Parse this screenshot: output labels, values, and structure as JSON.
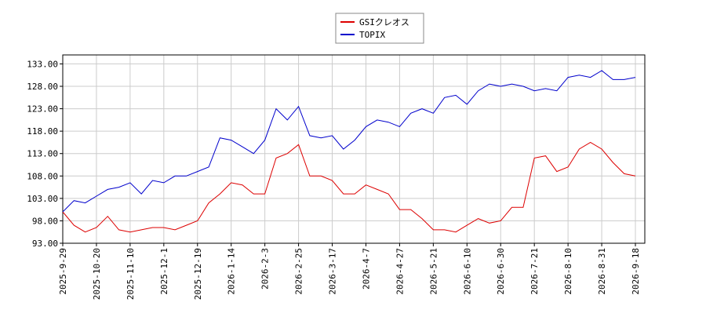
{
  "chart_data": {
    "type": "line",
    "x": [
      "2025-9-29",
      null,
      null,
      "2025-10-20",
      null,
      null,
      "2025-11-10",
      null,
      null,
      "2025-12-1",
      null,
      null,
      "2025-12-19",
      null,
      null,
      "2026-1-14",
      null,
      null,
      "2026-2-3",
      null,
      null,
      "2026-2-25",
      null,
      null,
      "2026-3-17",
      null,
      null,
      "2026-4-7",
      null,
      null,
      "2026-4-27",
      null,
      null,
      "2026-5-21",
      null,
      null,
      "2026-6-10",
      null,
      null,
      "2026-6-30",
      null,
      null,
      "2026-7-21",
      null,
      null,
      "2026-8-10",
      null,
      null,
      "2026-8-31",
      null,
      null,
      "2026-9-18"
    ],
    "series": [
      {
        "name": "GSIクレオス",
        "color": "#dd0000",
        "values": [
          100,
          97,
          95.5,
          96.5,
          99,
          96,
          95.5,
          96,
          96.5,
          96.5,
          96,
          97,
          98,
          102,
          104,
          106.5,
          106,
          104,
          104,
          112,
          113,
          115,
          108,
          108,
          107,
          104,
          104,
          106,
          105,
          104,
          100.5,
          100.5,
          98.5,
          96,
          96,
          95.5,
          97,
          98.5,
          97.5,
          98,
          101,
          101,
          112,
          112.5,
          109,
          110,
          114,
          115.5,
          114,
          111,
          108.5,
          108
        ]
      },
      {
        "name": "TOPIX",
        "color": "#0000cc",
        "values": [
          100,
          102.5,
          102,
          103.5,
          105,
          105.5,
          106.5,
          104,
          107,
          106.5,
          108,
          108,
          109,
          110,
          116.5,
          116,
          114.5,
          113,
          116,
          123,
          120.5,
          123.5,
          117,
          116.5,
          117,
          114,
          116,
          119,
          120.5,
          120,
          119,
          122,
          123,
          122,
          125.5,
          126,
          124,
          127,
          128.5,
          128,
          128.5,
          128,
          127,
          127.5,
          127,
          130,
          130.5,
          130,
          131.5,
          129.5,
          129.5,
          130
        ]
      }
    ],
    "ylim": [
      93,
      135
    ],
    "yticks": [
      {
        "value": 93,
        "label": "93.00"
      },
      {
        "value": 98,
        "label": "98.00"
      },
      {
        "value": 103,
        "label": "103.00"
      },
      {
        "value": 108,
        "label": "108.00"
      },
      {
        "value": 113,
        "label": "113.00"
      },
      {
        "value": 118,
        "label": "118.00"
      },
      {
        "value": 123,
        "label": "123.00"
      },
      {
        "value": 128,
        "label": "128.00"
      },
      {
        "value": 133,
        "label": "133.00"
      }
    ],
    "grid": true,
    "legend": "top"
  }
}
